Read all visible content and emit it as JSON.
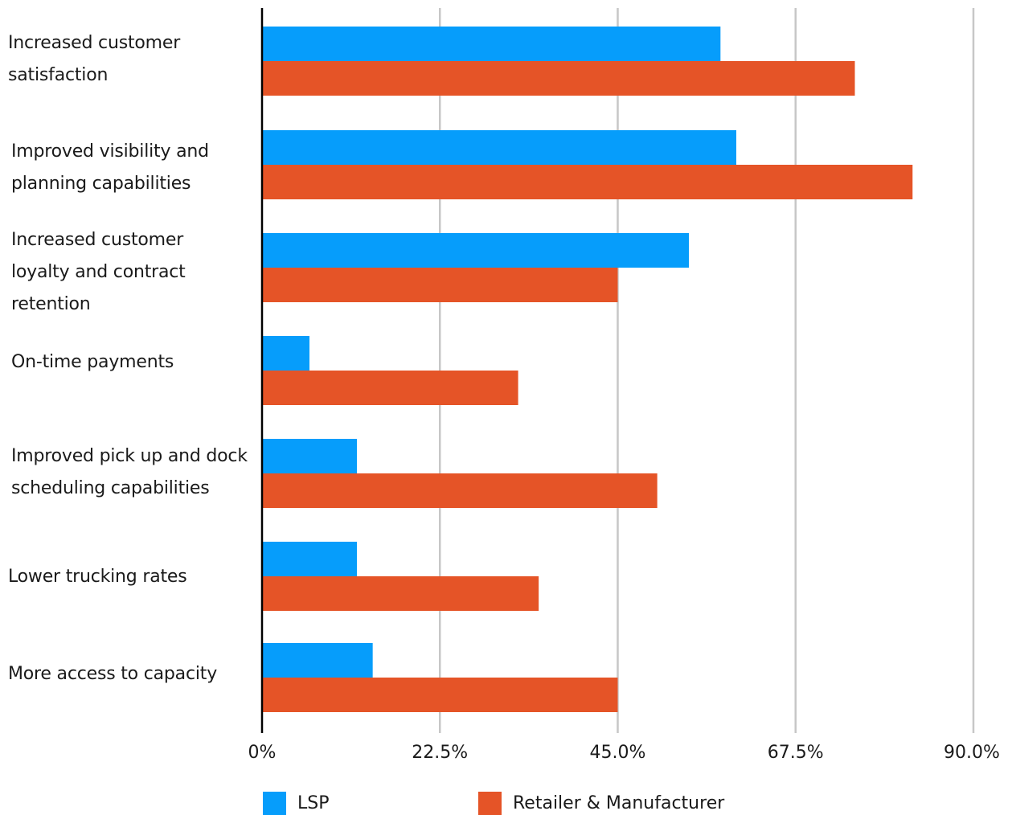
{
  "chart_data": {
    "type": "bar",
    "orientation": "horizontal",
    "categories": [
      [
        "Increased customer",
        "satisfaction"
      ],
      [
        "Improved visibility and",
        "planning capabilities"
      ],
      [
        "Increased customer",
        "loyalty and contract",
        "retention"
      ],
      [
        "On-time payments"
      ],
      [
        "Improved pick up and dock",
        "scheduling capabilities"
      ],
      [
        "Lower trucking rates"
      ],
      [
        "More access to capacity"
      ]
    ],
    "series": [
      {
        "name": "LSP",
        "color": "#069dfb",
        "values": [
          58,
          60,
          54,
          6,
          12,
          12,
          14
        ]
      },
      {
        "name": "Retailer & Manufacturer",
        "color": "#e55427",
        "values": [
          75,
          82.3,
          45,
          32.4,
          50,
          35,
          45
        ]
      }
    ],
    "x_ticks": [
      0,
      22.5,
      45.0,
      67.5,
      90.0
    ],
    "x_tick_labels": [
      "0%",
      "22.5%",
      "45.0%",
      "67.5%",
      "90.0%"
    ],
    "xlim": [
      0,
      90
    ],
    "grid": true,
    "legend_position": "bottom"
  }
}
